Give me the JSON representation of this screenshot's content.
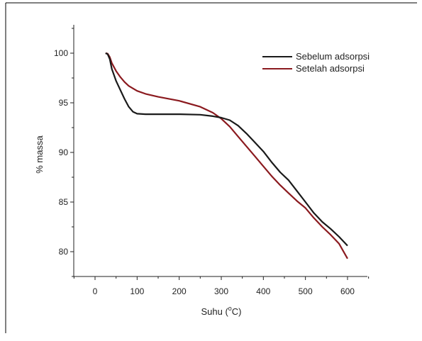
{
  "chart_data": {
    "type": "line",
    "title": "",
    "xlabel": "Suhu (",
    "xlabel_sup": "o",
    "xlabel_unit": "C)",
    "ylabel": "% massa",
    "xlim": [
      -50,
      650
    ],
    "ylim": [
      77.5,
      102.5
    ],
    "x_ticks": [
      0,
      100,
      200,
      300,
      400,
      500,
      600
    ],
    "x_tick_labels": [
      "0",
      "100",
      "200",
      "300",
      "400",
      "500",
      "600"
    ],
    "y_ticks": [
      80,
      85,
      90,
      95,
      100
    ],
    "y_tick_labels": [
      "80",
      "85",
      "90",
      "95",
      "100"
    ],
    "grid": false,
    "legend_position": "top-right",
    "series": [
      {
        "name": "Sebelum adsorpsi",
        "color": "#1a1a1a",
        "x": [
          25,
          30,
          35,
          40,
          45,
          50,
          60,
          70,
          80,
          90,
          100,
          120,
          150,
          200,
          250,
          280,
          300,
          320,
          340,
          360,
          380,
          400,
          420,
          440,
          460,
          480,
          500,
          520,
          540,
          560,
          580,
          600
        ],
        "y": [
          100,
          99.9,
          99.4,
          98.4,
          97.8,
          97.2,
          96.3,
          95.4,
          94.6,
          94.1,
          93.9,
          93.85,
          93.85,
          93.85,
          93.8,
          93.65,
          93.5,
          93.25,
          92.7,
          91.9,
          91.0,
          90.1,
          89.0,
          88.0,
          87.2,
          86.1,
          85.0,
          83.9,
          83.0,
          82.3,
          81.5,
          80.6
        ]
      },
      {
        "name": "Setelah adsorpsi",
        "color": "#8b1a1f",
        "x": [
          25,
          30,
          35,
          40,
          50,
          60,
          70,
          80,
          100,
          120,
          150,
          200,
          250,
          280,
          300,
          320,
          340,
          360,
          380,
          400,
          420,
          440,
          460,
          480,
          500,
          520,
          540,
          560,
          580,
          600
        ],
        "y": [
          100,
          99.95,
          99.6,
          99.0,
          98.2,
          97.6,
          97.1,
          96.7,
          96.2,
          95.9,
          95.6,
          95.2,
          94.6,
          94.0,
          93.4,
          92.6,
          91.6,
          90.6,
          89.6,
          88.6,
          87.6,
          86.7,
          85.9,
          85.1,
          84.4,
          83.4,
          82.5,
          81.7,
          80.8,
          79.3
        ]
      }
    ]
  }
}
